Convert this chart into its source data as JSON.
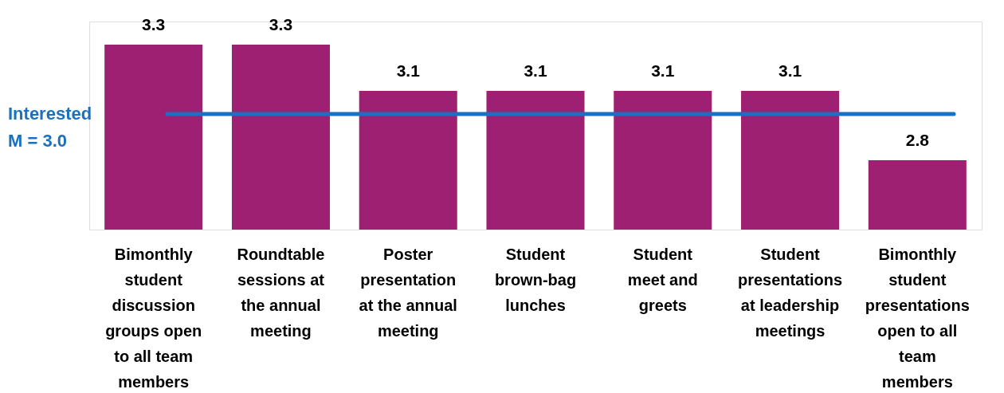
{
  "chart_data": {
    "type": "bar",
    "categories": [
      "Bimonthly\nstudent\ndiscussion\ngroups open\nto all team\nmembers",
      "Roundtable\nsessions at\nthe annual\nmeeting",
      "Poster\npresentation\nat the annual\nmeeting",
      "Student\nbrown-bag\nlunches",
      "Student\nmeet and\ngreets",
      "Student\npresentations\nat leadership\nmeetings",
      "Bimonthly\nstudent\npresentations\nopen to all\nteam\nmembers"
    ],
    "values": [
      3.3,
      3.3,
      3.1,
      3.1,
      3.1,
      3.1,
      2.8
    ],
    "color": "#9e2072",
    "ylim": [
      2.5,
      3.4
    ],
    "tick_labels": "x",
    "data_labels": true,
    "ref_lines": [
      {
        "axis": "y",
        "value": 3.0,
        "label": "Interested\nM = 3.0",
        "color": "#1a71bf"
      }
    ]
  }
}
